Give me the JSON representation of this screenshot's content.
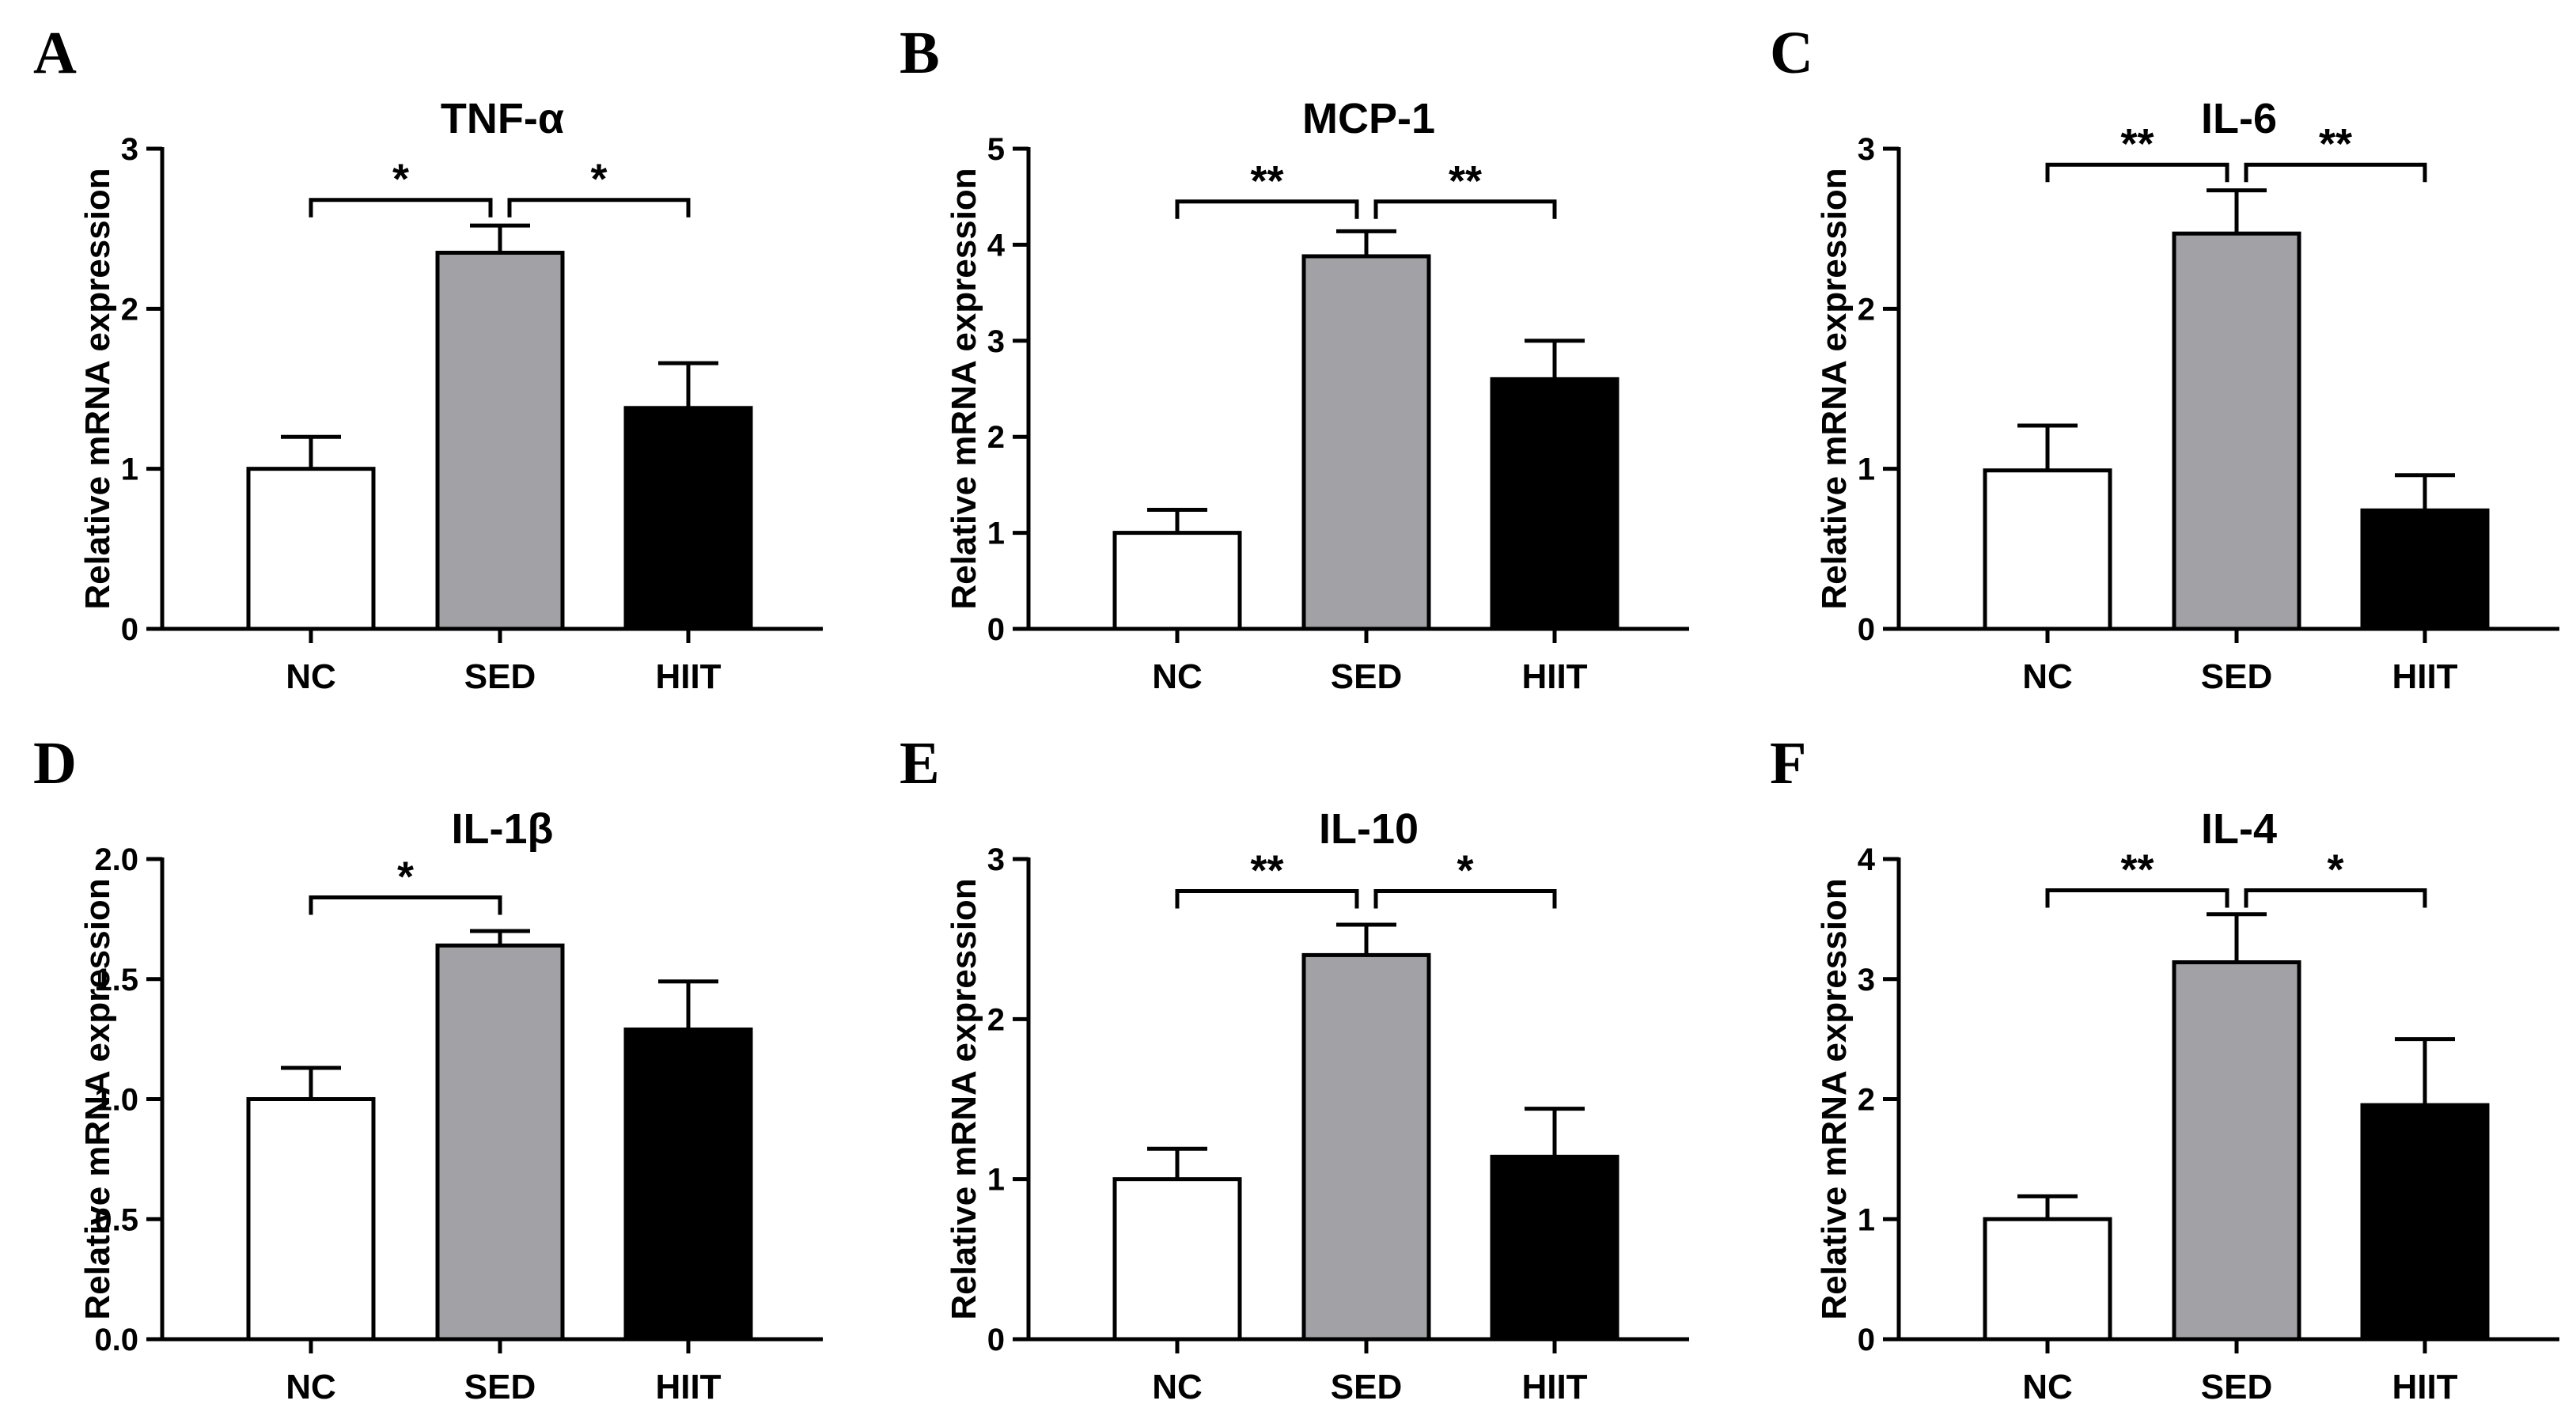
{
  "colors": {
    "NC": "#ffffff",
    "SED": "#a2a2a6",
    "HIIT": "#000000",
    "axis": "#000000"
  },
  "chart_data": [
    {
      "type": "bar",
      "panel": "A",
      "title": "TNF-α",
      "ylabel": "Relative mRNA expression",
      "categories": [
        "NC",
        "SED",
        "HIIT"
      ],
      "values": [
        1.0,
        2.35,
        1.38
      ],
      "errors": [
        0.2,
        0.17,
        0.28
      ],
      "ylim": [
        0,
        3
      ],
      "yticks": [
        0,
        1,
        2,
        3
      ],
      "ytick_labels": [
        "0",
        "1",
        "2",
        "3"
      ],
      "significance": [
        {
          "from": "NC",
          "to": "SED",
          "label": "*",
          "y": 2.68
        },
        {
          "from": "SED",
          "to": "HIIT",
          "label": "*",
          "y": 2.68
        }
      ]
    },
    {
      "type": "bar",
      "panel": "B",
      "title": "MCP-1",
      "ylabel": "Relative mRNA expression",
      "categories": [
        "NC",
        "SED",
        "HIIT"
      ],
      "values": [
        1.0,
        3.88,
        2.6
      ],
      "errors": [
        0.24,
        0.26,
        0.4
      ],
      "ylim": [
        0,
        5
      ],
      "yticks": [
        0,
        1,
        2,
        3,
        4,
        5
      ],
      "ytick_labels": [
        "0",
        "1",
        "2",
        "3",
        "4",
        "5"
      ],
      "significance": [
        {
          "from": "NC",
          "to": "SED",
          "label": "**",
          "y": 4.45
        },
        {
          "from": "SED",
          "to": "HIIT",
          "label": "**",
          "y": 4.45
        }
      ]
    },
    {
      "type": "bar",
      "panel": "C",
      "title": "IL-6",
      "ylabel": "Relative mRNA expression",
      "categories": [
        "NC",
        "SED",
        "HIIT"
      ],
      "values": [
        0.99,
        2.47,
        0.74
      ],
      "errors": [
        0.28,
        0.27,
        0.22
      ],
      "ylim": [
        0,
        3
      ],
      "yticks": [
        0,
        1,
        2,
        3
      ],
      "ytick_labels": [
        "0",
        "1",
        "2",
        "3"
      ],
      "significance": [
        {
          "from": "NC",
          "to": "SED",
          "label": "**",
          "y": 2.9
        },
        {
          "from": "SED",
          "to": "HIIT",
          "label": "**",
          "y": 2.9
        }
      ]
    },
    {
      "type": "bar",
      "panel": "D",
      "title": "IL-1β",
      "ylabel": "Relative mRNA expression",
      "categories": [
        "NC",
        "SED",
        "HIIT"
      ],
      "values": [
        1.0,
        1.64,
        1.29
      ],
      "errors": [
        0.13,
        0.06,
        0.2
      ],
      "ylim": [
        0,
        2
      ],
      "yticks": [
        0,
        0.5,
        1.0,
        1.5,
        2.0
      ],
      "ytick_labels": [
        "0.0",
        "0.5",
        "1.0",
        "1.5",
        "2.0"
      ],
      "significance": [
        {
          "from": "NC",
          "to": "SED",
          "label": "*",
          "y": 1.84
        }
      ]
    },
    {
      "type": "bar",
      "panel": "E",
      "title": "IL-10",
      "ylabel": "Relative mRNA expression",
      "categories": [
        "NC",
        "SED",
        "HIIT"
      ],
      "values": [
        1.0,
        2.4,
        1.14
      ],
      "errors": [
        0.19,
        0.19,
        0.3
      ],
      "ylim": [
        0,
        3
      ],
      "yticks": [
        0,
        1,
        2,
        3
      ],
      "ytick_labels": [
        "0",
        "1",
        "2",
        "3"
      ],
      "significance": [
        {
          "from": "NC",
          "to": "SED",
          "label": "**",
          "y": 2.8
        },
        {
          "from": "SED",
          "to": "HIIT",
          "label": "*",
          "y": 2.8
        }
      ]
    },
    {
      "type": "bar",
      "panel": "F",
      "title": "IL-4",
      "ylabel": "Relative mRNA expression",
      "categories": [
        "NC",
        "SED",
        "HIIT"
      ],
      "values": [
        1.0,
        3.14,
        1.95
      ],
      "errors": [
        0.19,
        0.4,
        0.55
      ],
      "ylim": [
        0,
        4
      ],
      "yticks": [
        0,
        1,
        2,
        3,
        4
      ],
      "ytick_labels": [
        "0",
        "1",
        "2",
        "3",
        "4"
      ],
      "significance": [
        {
          "from": "NC",
          "to": "SED",
          "label": "**",
          "y": 3.74
        },
        {
          "from": "SED",
          "to": "HIIT",
          "label": "*",
          "y": 3.74
        }
      ]
    }
  ]
}
